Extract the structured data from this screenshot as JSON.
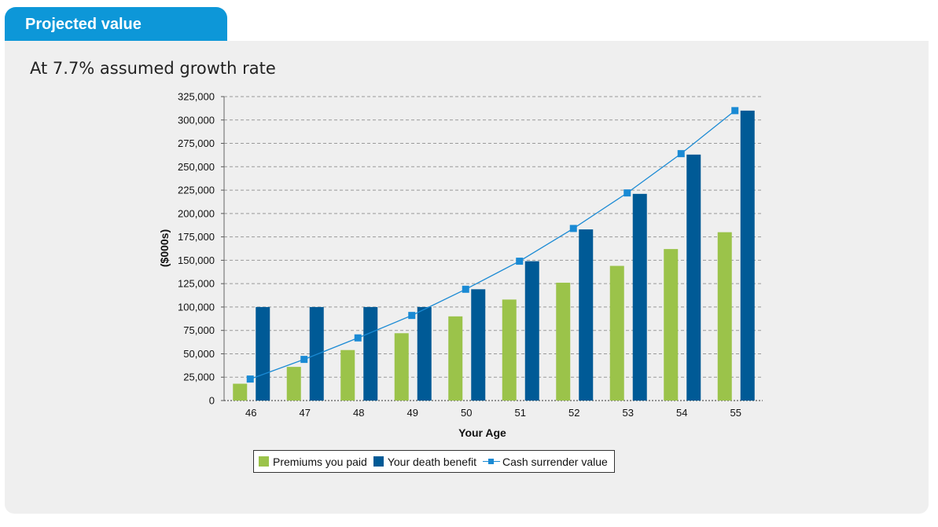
{
  "header": {
    "title": "Projected value"
  },
  "subtitle": "At 7.7% assumed growth rate",
  "colors": {
    "premiums": "#9bc34a",
    "death_benefit": "#005a96",
    "cash_surrender": "#1a8ad4",
    "tab": "#0d97d8"
  },
  "legend": {
    "premiums": "Premiums you paid",
    "death_benefit": "Your death benefit",
    "cash_surrender": "Cash surrender value"
  },
  "chart_data": {
    "type": "bar",
    "xlabel": "Your Age",
    "ylabel": "($000s)",
    "ylim": [
      0,
      325000
    ],
    "yticks": [
      0,
      25000,
      50000,
      75000,
      100000,
      125000,
      150000,
      175000,
      200000,
      225000,
      250000,
      275000,
      300000,
      325000
    ],
    "categories": [
      "46",
      "47",
      "48",
      "49",
      "50",
      "51",
      "52",
      "53",
      "54",
      "55"
    ],
    "grid": true,
    "legend_position": "bottom",
    "series": [
      {
        "name": "Premiums you paid",
        "type": "bar",
        "values": [
          18000,
          36000,
          54000,
          72000,
          90000,
          108000,
          126000,
          144000,
          162000,
          180000
        ]
      },
      {
        "name": "Your death benefit",
        "type": "bar",
        "values": [
          100000,
          100000,
          100000,
          100000,
          119000,
          149000,
          183000,
          221000,
          263000,
          310000
        ]
      },
      {
        "name": "Cash surrender value",
        "type": "line",
        "values": [
          23000,
          44000,
          67000,
          91000,
          119000,
          149000,
          184000,
          222000,
          264000,
          310000
        ]
      }
    ]
  }
}
